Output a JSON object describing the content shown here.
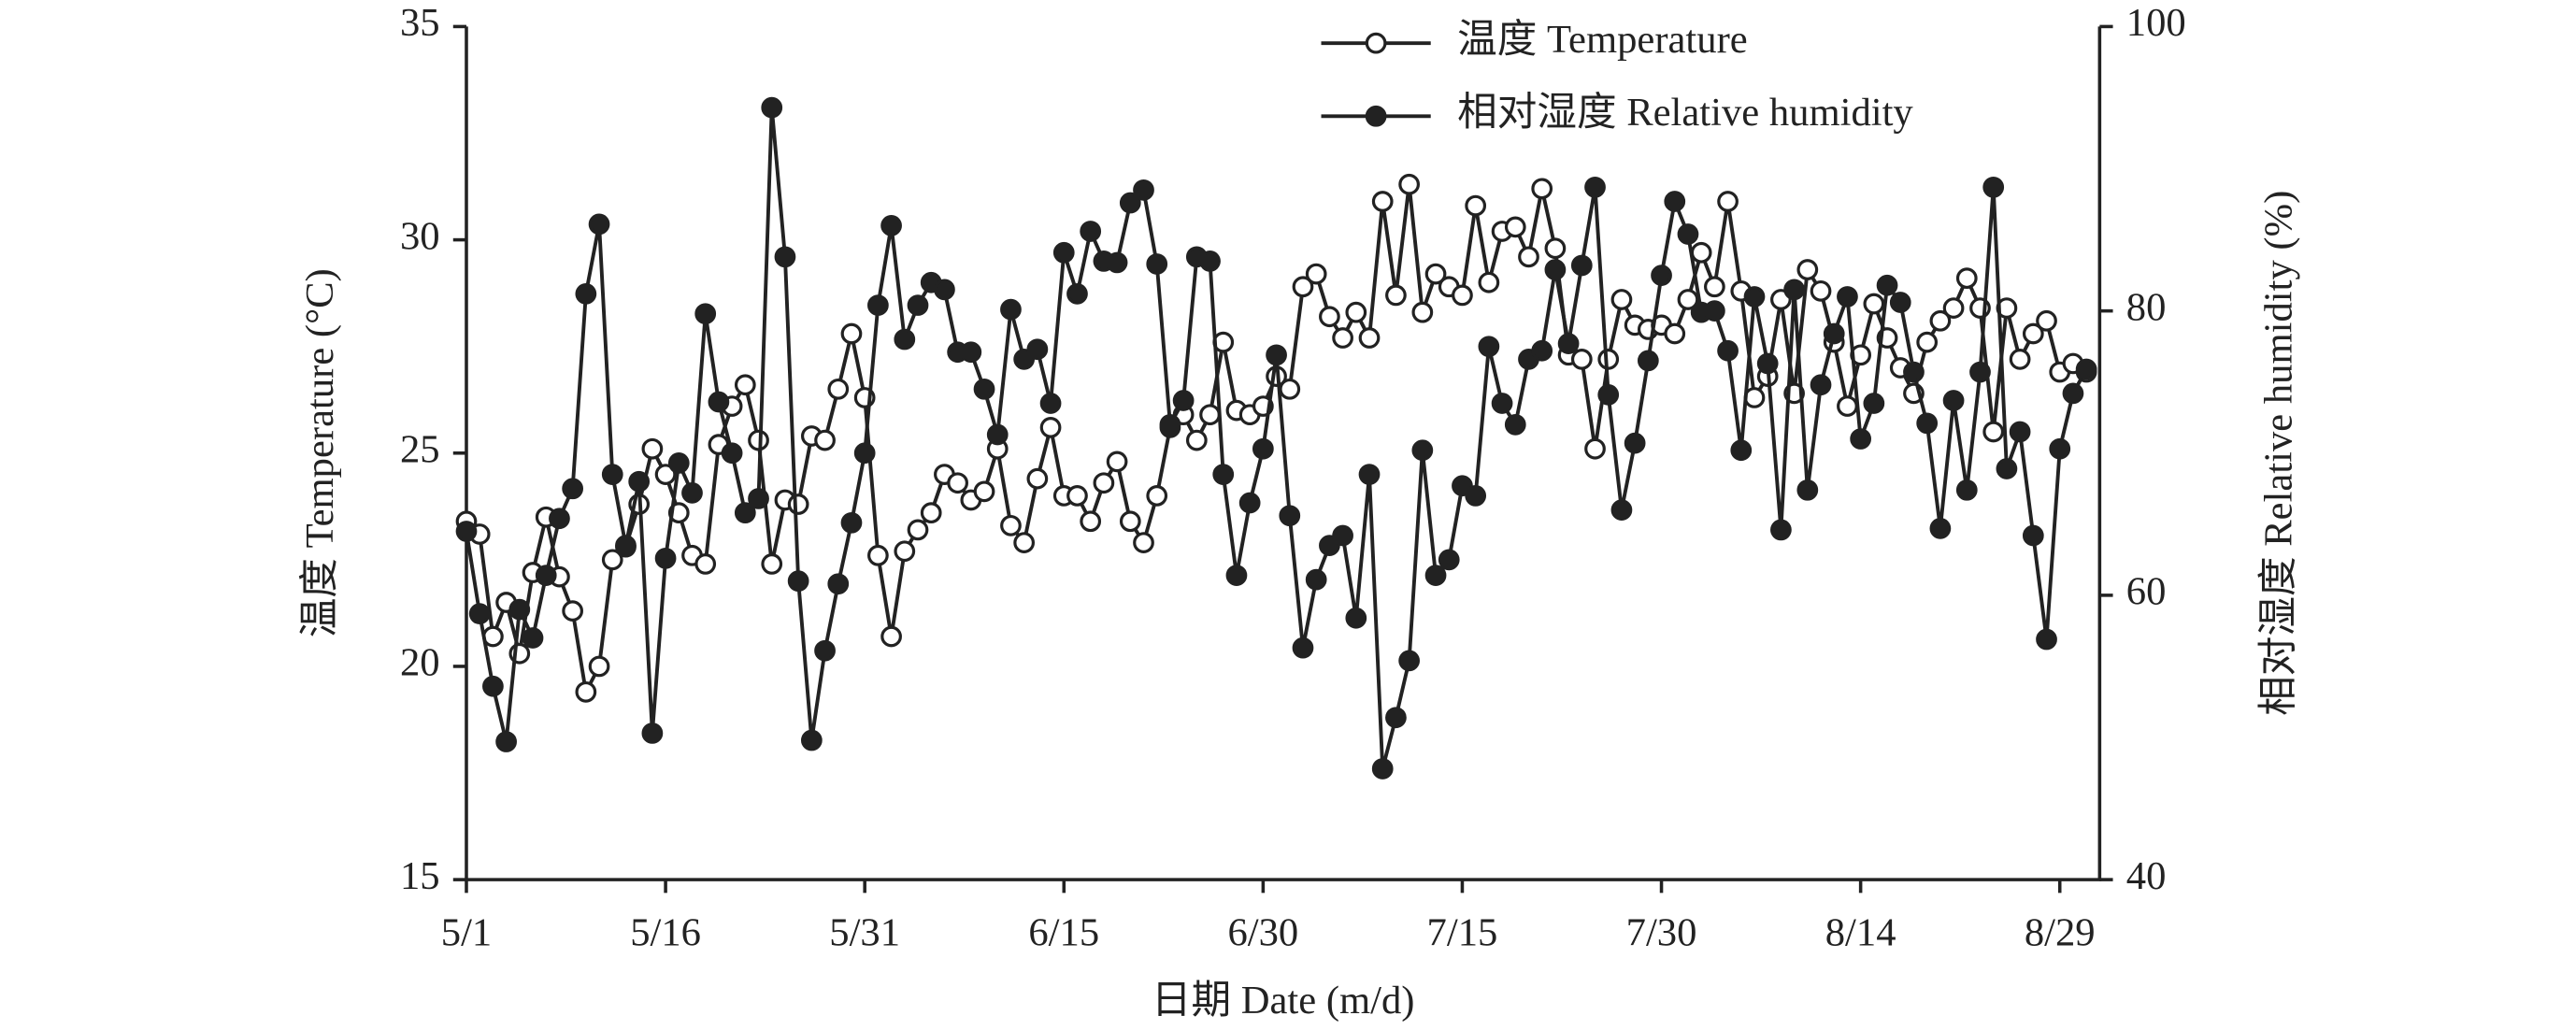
{
  "chart_data": {
    "type": "line",
    "xlabel": "日期 Date (m/d)",
    "ylabel": "温度 Temperature (°C)",
    "y2label": "相对湿度 Relative humidity (%)",
    "x": [
      0,
      1,
      2,
      3,
      4,
      5,
      6,
      7,
      8,
      9,
      10,
      11,
      12,
      13,
      14,
      15,
      16,
      17,
      18,
      19,
      20,
      21,
      22,
      23,
      24,
      25,
      26,
      27,
      28,
      29,
      30,
      31,
      32,
      33,
      34,
      35,
      36,
      37,
      38,
      39,
      40,
      41,
      42,
      43,
      44,
      45,
      46,
      47,
      48,
      49,
      50,
      51,
      52,
      53,
      54,
      55,
      56,
      57,
      58,
      59,
      60,
      61,
      62,
      63,
      64,
      65,
      66,
      67,
      68,
      69,
      70,
      71,
      72,
      73,
      74,
      75,
      76,
      77,
      78,
      79,
      80,
      81,
      82,
      83,
      84,
      85,
      86,
      87,
      88,
      89,
      90,
      91,
      92,
      93,
      94,
      95,
      96,
      97,
      98,
      99,
      100,
      101,
      102,
      103,
      104,
      105,
      106,
      107,
      108,
      109,
      110,
      111,
      112,
      113,
      114,
      115,
      116,
      117,
      118,
      119,
      120,
      121,
      122
    ],
    "xlim": [
      0,
      123
    ],
    "xticks": [
      {
        "value": 0,
        "label": "5/1"
      },
      {
        "value": 15,
        "label": "5/16"
      },
      {
        "value": 30,
        "label": "5/31"
      },
      {
        "value": 45,
        "label": "6/15"
      },
      {
        "value": 60,
        "label": "6/30"
      },
      {
        "value": 75,
        "label": "7/15"
      },
      {
        "value": 90,
        "label": "7/30"
      },
      {
        "value": 105,
        "label": "8/14"
      },
      {
        "value": 120,
        "label": "8/29"
      }
    ],
    "ylim": [
      15,
      35
    ],
    "yticks": [
      15,
      20,
      25,
      30,
      35
    ],
    "y2lim": [
      40,
      100
    ],
    "y2ticks": [
      40,
      60,
      80,
      100
    ],
    "legend": "upper right",
    "series": [
      {
        "name": "温度 Temperature",
        "color": "#222222",
        "marker": "open",
        "values": [
          23.4,
          23.1,
          20.7,
          21.5,
          20.3,
          22.2,
          23.5,
          22.1,
          21.3,
          19.4,
          20.0,
          22.5,
          22.8,
          23.8,
          25.1,
          24.5,
          23.6,
          22.6,
          22.4,
          25.2,
          26.1,
          26.6,
          25.3,
          22.4,
          23.9,
          23.8,
          25.4,
          25.3,
          26.5,
          27.8,
          26.3,
          22.6,
          20.7,
          22.7,
          23.2,
          23.6,
          24.5,
          24.3,
          23.9,
          24.1,
          25.1,
          23.3,
          22.9,
          24.4,
          25.6,
          24.0,
          24.0,
          23.4,
          24.3,
          24.8,
          23.4,
          22.9,
          24.0,
          25.6,
          25.9,
          25.3,
          25.9,
          27.6,
          26.0,
          25.9,
          26.1,
          26.8,
          26.5,
          28.9,
          29.2,
          28.2,
          27.7,
          28.3,
          27.7,
          30.9,
          28.7,
          31.3,
          28.3,
          29.2,
          28.9,
          28.7,
          30.8,
          29.0,
          30.2,
          30.3,
          29.6,
          31.2,
          29.8,
          27.3,
          27.2,
          25.1,
          27.2,
          28.6,
          28.0,
          27.9,
          28.0,
          27.8,
          28.6,
          29.7,
          28.9,
          30.9,
          28.8,
          26.3,
          26.8,
          28.6,
          26.4,
          29.3,
          28.8,
          27.6,
          26.1,
          27.3,
          28.5,
          27.7,
          27.0,
          26.4,
          27.6,
          28.1,
          28.4,
          29.1,
          28.4,
          25.5,
          28.4,
          27.2,
          27.8,
          28.1,
          26.9,
          27.1,
          26.9
        ]
      },
      {
        "name": "相对湿度 Relative humidity",
        "color": "#222222",
        "marker": "filled",
        "axis": "y2",
        "values": [
          64.5,
          58.7,
          53.6,
          49.7,
          59,
          57,
          61.4,
          65.4,
          67.5,
          81.2,
          86.1,
          68.5,
          63.5,
          68,
          50.3,
          62.6,
          69.3,
          67.2,
          79.8,
          73.6,
          70,
          65.8,
          66.8,
          94.3,
          83.8,
          61,
          49.8,
          56.1,
          60.8,
          65.1,
          70,
          80.4,
          86,
          78,
          80.4,
          82,
          81.5,
          77.1,
          77.1,
          74.5,
          71.3,
          80.1,
          76.6,
          77.3,
          73.5,
          84.1,
          81.2,
          85.6,
          83.5,
          83.4,
          87.6,
          88.5,
          83.3,
          72,
          73.7,
          83.8,
          83.5,
          68.5,
          61.4,
          66.5,
          70.3,
          76.9,
          65.6,
          56.3,
          61.1,
          63.5,
          64.2,
          58.4,
          68.5,
          47.8,
          51.4,
          55.4,
          70.2,
          61.4,
          62.5,
          67.7,
          67,
          77.5,
          73.5,
          72,
          76.6,
          77.2,
          82.9,
          77.7,
          83.2,
          88.7,
          74.1,
          66,
          70.7,
          76.5,
          82.5,
          87.7,
          85.4,
          79.9,
          80,
          77.2,
          70.2,
          81,
          76.3,
          64.6,
          81.5,
          67.4,
          74.8,
          78.4,
          81,
          71,
          73.5,
          81.8,
          80.6,
          75.7,
          72.1,
          64.7,
          73.7,
          67.4,
          75.7,
          88.7,
          68.9,
          71.5,
          64.2,
          56.9,
          70.3,
          74.2,
          75.9
        ]
      }
    ]
  }
}
